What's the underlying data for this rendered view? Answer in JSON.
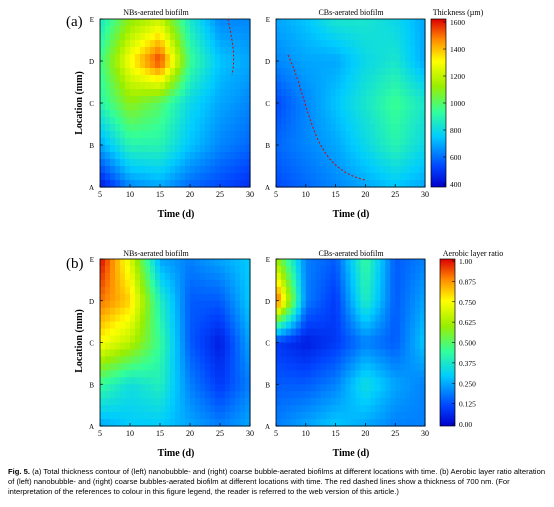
{
  "figure": {
    "caption_label": "Fig. 5.",
    "caption_text": "(a) Total thickness contour of (left) nanobubble- and (right) coarse bubble-aerated biofilms at different locations with time. (b) Aerobic layer ratio alteration of (left) nanobubble- and (right) coarse bubbles-aerated biofilm at different locations with time. The red dashed lines show a thickness of 700 nm. (For interpretation of the references to colour in this figure legend, the reader is referred to the web version of this article.)"
  },
  "panels": [
    {
      "id": "a",
      "label": "(a)",
      "left_title": "NBs-aerated biofilm",
      "right_title": "CBs-aerated biofilm",
      "ylabel": "Location (mm)",
      "xlabel": "Time (d)",
      "colorbar_title": "Thickness (µm)",
      "colorbar_ticks": [
        "1600",
        "1400",
        "1200",
        "1000",
        "800",
        "600",
        "400"
      ]
    },
    {
      "id": "b",
      "label": "(b)",
      "left_title": "NBs-aerated biofilm",
      "right_title": "CBs-aerated biofilm",
      "ylabel": "Location (mm)",
      "xlabel": "Time (d)",
      "colorbar_title": "Aerobic layer ratio",
      "colorbar_ticks": [
        "1.00",
        "0.875",
        "0.750",
        "0.625",
        "0.500",
        "0.375",
        "0.250",
        "0.125",
        "0.00"
      ]
    }
  ],
  "axes": {
    "x_ticks": [
      "5",
      "10",
      "15",
      "20",
      "25",
      "30"
    ],
    "y_ticks": [
      "A",
      "B",
      "C",
      "D",
      "E"
    ]
  },
  "chart_data": [
    {
      "type": "heatmap",
      "title": "NBs-aerated biofilm",
      "xlabel": "Time (d)",
      "ylabel": "Location (mm)",
      "x": [
        5,
        10,
        15,
        20,
        25,
        30
      ],
      "y": [
        "A",
        "B",
        "C",
        "D",
        "E"
      ],
      "z": [
        [
          450,
          650,
          700,
          600,
          550,
          500
        ],
        [
          700,
          900,
          900,
          750,
          650,
          600
        ],
        [
          900,
          1100,
          1000,
          800,
          700,
          650
        ],
        [
          950,
          1300,
          1550,
          950,
          750,
          700
        ],
        [
          850,
          1100,
          1200,
          850,
          650,
          650
        ]
      ],
      "zlim": [
        400,
        1600
      ],
      "colorbar_label": "Thickness (µm)"
    },
    {
      "type": "heatmap",
      "title": "CBs-aerated biofilm",
      "xlabel": "Time (d)",
      "ylabel": "Location (mm)",
      "x": [
        5,
        10,
        15,
        20,
        25,
        30
      ],
      "y": [
        "A",
        "B",
        "C",
        "D",
        "E"
      ],
      "z": [
        [
          550,
          600,
          650,
          700,
          750,
          700
        ],
        [
          600,
          650,
          700,
          800,
          900,
          800
        ],
        [
          550,
          650,
          750,
          850,
          950,
          850
        ],
        [
          650,
          700,
          700,
          800,
          850,
          700
        ],
        [
          700,
          750,
          850,
          850,
          800,
          700
        ]
      ],
      "zlim": [
        400,
        1600
      ],
      "colorbar_label": "Thickness (µm)"
    },
    {
      "type": "heatmap",
      "title": "NBs-aerated biofilm",
      "xlabel": "Time (d)",
      "ylabel": "Location (mm)",
      "x": [
        5,
        10,
        15,
        20,
        25,
        30
      ],
      "y": [
        "A",
        "B",
        "C",
        "D",
        "E"
      ],
      "z": [
        [
          0.25,
          0.3,
          0.3,
          0.25,
          0.2,
          0.25
        ],
        [
          0.45,
          0.35,
          0.4,
          0.2,
          0.1,
          0.2
        ],
        [
          0.75,
          0.65,
          0.45,
          0.15,
          0.05,
          0.25
        ],
        [
          0.9,
          0.8,
          0.4,
          0.15,
          0.15,
          0.3
        ],
        [
          1.0,
          0.7,
          0.25,
          0.2,
          0.25,
          0.3
        ]
      ],
      "zlim": [
        0,
        1
      ],
      "colorbar_label": "Aerobic layer ratio"
    },
    {
      "type": "heatmap",
      "title": "CBs-aerated biofilm",
      "xlabel": "Time (d)",
      "ylabel": "Location (mm)",
      "x": [
        5,
        10,
        15,
        20,
        25,
        30
      ],
      "y": [
        "A",
        "B",
        "C",
        "D",
        "E"
      ],
      "z": [
        [
          0.2,
          0.25,
          0.3,
          0.25,
          0.2,
          0.2
        ],
        [
          0.15,
          0.15,
          0.2,
          0.35,
          0.25,
          0.2
        ],
        [
          0.1,
          0.05,
          0.1,
          0.2,
          0.15,
          0.3
        ],
        [
          0.95,
          0.2,
          0.1,
          0.4,
          0.15,
          0.25
        ],
        [
          0.6,
          0.2,
          0.15,
          0.45,
          0.15,
          0.2
        ]
      ],
      "zlim": [
        0,
        1
      ],
      "colorbar_label": "Aerobic layer ratio"
    }
  ]
}
